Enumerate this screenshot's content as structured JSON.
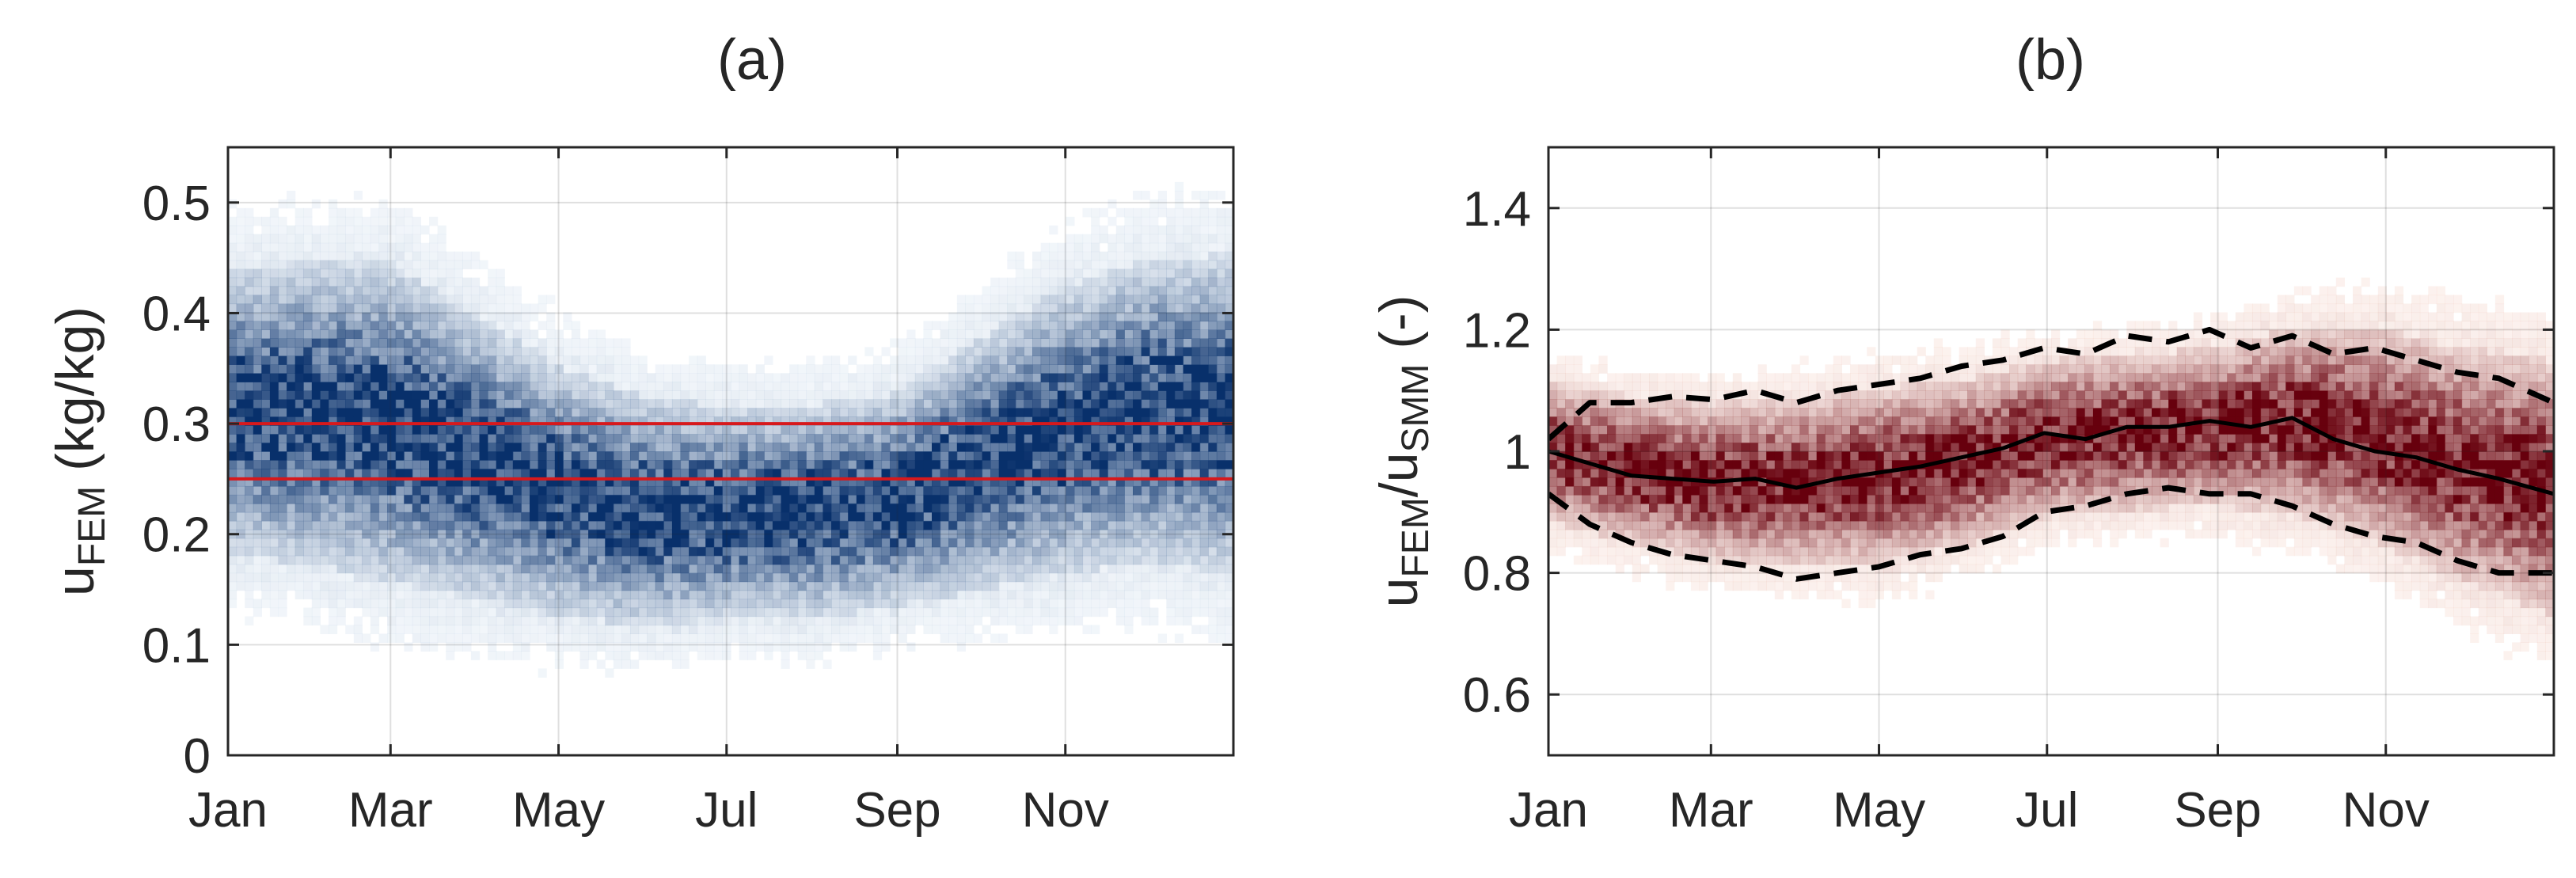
{
  "chart_data": [
    {
      "type": "heatmap",
      "title": "(a)",
      "xlabel": "",
      "ylabel": "u",
      "ylabel_subscript": "FEM",
      "ylabel_units": " (kg/kg)",
      "x_ticks": [
        "Jan",
        "Mar",
        "May",
        "Jul",
        "Sep",
        "Nov"
      ],
      "x_tick_days": [
        0,
        59,
        120,
        181,
        243,
        304
      ],
      "xlim": [
        0,
        365
      ],
      "ylim": [
        0,
        0.55
      ],
      "y_ticks": [
        0,
        0.1,
        0.2,
        0.3,
        0.4,
        0.5
      ],
      "y_tick_labels": [
        "0",
        "0.1",
        "0.2",
        "0.3",
        "0.4",
        "0.5"
      ],
      "colormap": "blues",
      "colors": {
        "light": "#deebf7",
        "dark": "#08306b"
      },
      "grid": true,
      "density_center": {
        "x": [
          0,
          30,
          60,
          90,
          120,
          150,
          180,
          210,
          240,
          270,
          300,
          330,
          365
        ],
        "y": [
          0.31,
          0.31,
          0.3,
          0.27,
          0.24,
          0.22,
          0.22,
          0.22,
          0.23,
          0.26,
          0.29,
          0.31,
          0.31
        ]
      },
      "density_spread": {
        "x": [
          0,
          60,
          120,
          180,
          240,
          300,
          365
        ],
        "y": [
          0.08,
          0.09,
          0.07,
          0.06,
          0.06,
          0.08,
          0.09
        ]
      },
      "reference_lines": [
        {
          "value": 0.3,
          "color": "#d7191c"
        },
        {
          "value": 0.25,
          "color": "#d7191c"
        }
      ]
    },
    {
      "type": "heatmap",
      "title": "(b)",
      "xlabel": "",
      "ylabel_main1": "u",
      "ylabel_sub1": "FEM",
      "ylabel_slash": "/u",
      "ylabel_sub2": "SMM",
      "ylabel_units": " (-)",
      "x_ticks": [
        "Jan",
        "Mar",
        "May",
        "Jul",
        "Sep",
        "Nov"
      ],
      "x_tick_days": [
        0,
        59,
        120,
        181,
        243,
        304
      ],
      "xlim": [
        0,
        365
      ],
      "ylim": [
        0.5,
        1.5
      ],
      "y_ticks": [
        0.6,
        0.8,
        1.0,
        1.2,
        1.4
      ],
      "y_tick_labels": [
        "0.6",
        "0.8",
        "1",
        "1.2",
        "1.4"
      ],
      "colormap": "reds",
      "colors": {
        "light": "#fee0d2",
        "dark": "#67000d"
      },
      "grid": true,
      "density_center": {
        "x": [
          0,
          30,
          60,
          90,
          120,
          150,
          180,
          210,
          240,
          270,
          300,
          330,
          365
        ],
        "y": [
          1.0,
          0.97,
          0.95,
          0.95,
          0.96,
          0.98,
          1.02,
          1.03,
          1.04,
          1.05,
          1.03,
          0.98,
          0.94
        ]
      },
      "density_spread": {
        "x": [
          0,
          60,
          120,
          180,
          240,
          300,
          365
        ],
        "y": [
          0.07,
          0.08,
          0.09,
          0.08,
          0.08,
          0.11,
          0.13
        ]
      },
      "series": [
        {
          "name": "median",
          "style": "solid",
          "x": [
            0,
            15,
            30,
            45,
            60,
            75,
            90,
            105,
            120,
            135,
            150,
            165,
            180,
            195,
            210,
            225,
            240,
            255,
            270,
            285,
            300,
            315,
            330,
            345,
            365
          ],
          "y": [
            1.0,
            0.98,
            0.96,
            0.955,
            0.95,
            0.955,
            0.94,
            0.955,
            0.965,
            0.975,
            0.99,
            1.005,
            1.03,
            1.02,
            1.04,
            1.04,
            1.05,
            1.04,
            1.055,
            1.02,
            1.0,
            0.99,
            0.97,
            0.955,
            0.93
          ]
        },
        {
          "name": "upper",
          "style": "dashed",
          "x": [
            0,
            15,
            30,
            45,
            60,
            75,
            90,
            105,
            120,
            135,
            150,
            165,
            180,
            195,
            210,
            225,
            240,
            255,
            270,
            285,
            300,
            315,
            330,
            345,
            365
          ],
          "y": [
            1.02,
            1.08,
            1.08,
            1.09,
            1.085,
            1.1,
            1.08,
            1.1,
            1.11,
            1.12,
            1.14,
            1.15,
            1.17,
            1.16,
            1.19,
            1.18,
            1.2,
            1.17,
            1.19,
            1.16,
            1.17,
            1.15,
            1.13,
            1.12,
            1.08
          ]
        },
        {
          "name": "lower",
          "style": "dashed",
          "x": [
            0,
            15,
            30,
            45,
            60,
            75,
            90,
            105,
            120,
            135,
            150,
            165,
            180,
            195,
            210,
            225,
            240,
            255,
            270,
            285,
            300,
            315,
            330,
            345,
            365
          ],
          "y": [
            0.93,
            0.88,
            0.85,
            0.83,
            0.82,
            0.81,
            0.79,
            0.8,
            0.81,
            0.83,
            0.84,
            0.86,
            0.9,
            0.91,
            0.93,
            0.94,
            0.93,
            0.93,
            0.91,
            0.88,
            0.86,
            0.85,
            0.82,
            0.8,
            0.8
          ]
        }
      ]
    }
  ]
}
